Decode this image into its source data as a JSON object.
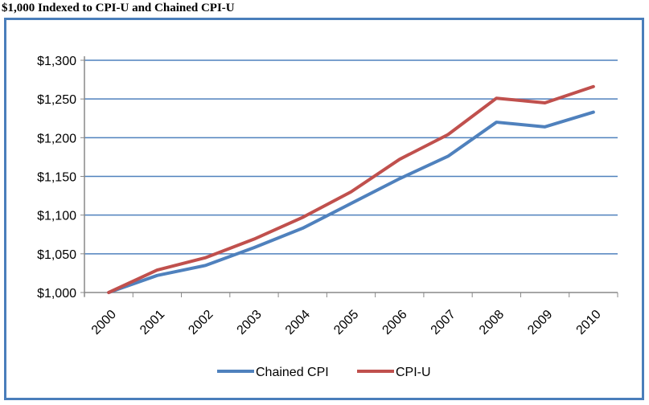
{
  "chart_data": {
    "type": "line",
    "title": "$1,000 Indexed to CPI-U and Chained CPI-U",
    "categories": [
      "2000",
      "2001",
      "2002",
      "2003",
      "2004",
      "2005",
      "2006",
      "2007",
      "2008",
      "2009",
      "2010"
    ],
    "series": [
      {
        "name": "Chained CPI",
        "color": "#4f81bd",
        "values": [
          1000,
          1022,
          1035,
          1058,
          1083,
          1115,
          1147,
          1176,
          1220,
          1214,
          1233
        ]
      },
      {
        "name": "CPI-U",
        "color": "#c0504d",
        "values": [
          1000,
          1029,
          1045,
          1069,
          1097,
          1130,
          1172,
          1204,
          1251,
          1245,
          1266
        ]
      }
    ],
    "ylim": [
      1000,
      1300
    ],
    "yticks": [
      "$1,000",
      "$1,050",
      "$1,100",
      "$1,150",
      "$1,200",
      "$1,250",
      "$1,300"
    ],
    "grid": true,
    "grid_color": "#4f81bd",
    "frame_color": "#4a7ebb",
    "legend": "bottom"
  }
}
